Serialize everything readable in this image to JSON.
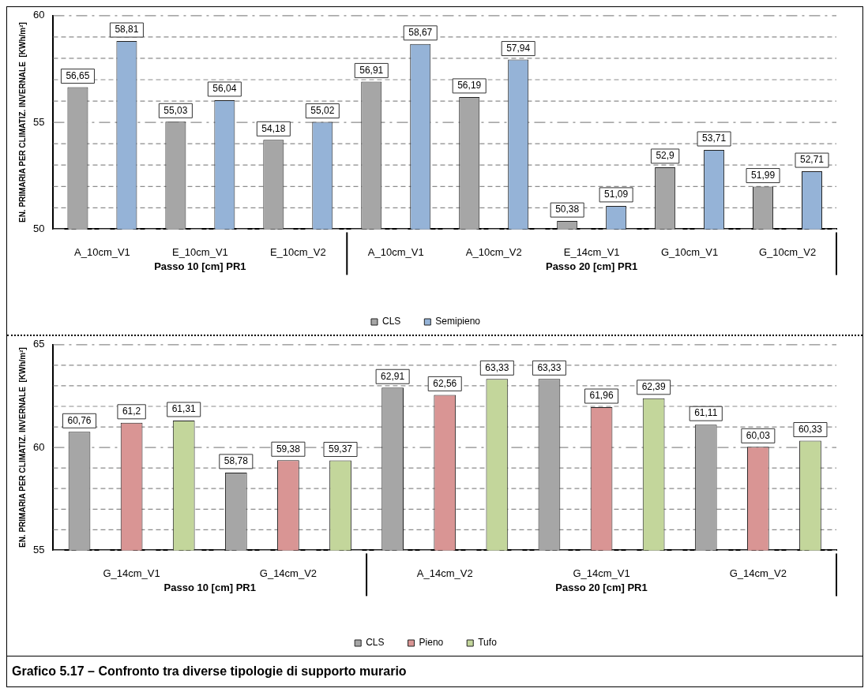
{
  "chart_data": [
    {
      "type": "bar",
      "ylabel": "EN. PRIMARIA PER CLIMATIZ. INVERNALE  [KWh/m²]",
      "categories": [
        "A_10cm_V1",
        "E_10cm_V1",
        "E_10cm_V2",
        "A_10cm_V1",
        "A_10cm_V2",
        "E_14cm_V1",
        "G_10cm_V1",
        "G_10cm_V2"
      ],
      "series": [
        {
          "name": "CLS",
          "color": "#a6a6a6",
          "values": [
            56.65,
            55.03,
            54.18,
            56.91,
            56.19,
            50.38,
            52.9,
            51.99
          ],
          "value_labels": [
            "56,65",
            "55,03",
            "54,18",
            "56,91",
            "56,19",
            "50,38",
            "52,9",
            "51,99"
          ]
        },
        {
          "name": "Semipieno",
          "color": "#95b3d7",
          "values": [
            58.81,
            56.04,
            55.02,
            58.67,
            57.94,
            51.09,
            53.71,
            52.71
          ],
          "value_labels": [
            "58,81",
            "56,04",
            "55,02",
            "58,67",
            "57,94",
            "51,09",
            "53,71",
            "52,71"
          ]
        }
      ],
      "ylim": [
        50,
        60
      ],
      "yticks": [
        50,
        {
          "value": 51,
          "label": null
        },
        {
          "value": 52,
          "label": null
        },
        {
          "value": 53,
          "label": null
        },
        {
          "value": 54,
          "label": null
        },
        55,
        {
          "value": 56,
          "label": null
        },
        {
          "value": 57,
          "label": null
        },
        {
          "value": 58,
          "label": null
        },
        {
          "value": 59,
          "label": null
        },
        60
      ],
      "grid": "y",
      "legend": "bottom",
      "annotations": [
        "Passo 10 [cm] PR1",
        "Passo 20 [cm] PR1"
      ]
    },
    {
      "type": "bar",
      "title": "Grafico 5.17 – Confronto tra diverse tipologie di supporto murario",
      "ylabel": "EN. PRIMARIA PER CLIMATIZ. INVERNALE  [KWh/m²]",
      "categories": [
        "G_14cm_V1",
        "G_14cm_V2",
        "A_14cm_V2",
        "G_14cm_V1",
        "G_14cm_V2"
      ],
      "series": [
        {
          "name": "CLS",
          "color": "#a6a6a6",
          "values": [
            60.76,
            58.78,
            62.91,
            63.33,
            61.11
          ],
          "value_labels": [
            "60,76",
            "58,78",
            "62,91",
            "63,33",
            "61,11"
          ]
        },
        {
          "name": "Pieno",
          "color": "#d99594",
          "values": [
            61.2,
            59.38,
            62.56,
            61.96,
            60.03
          ],
          "value_labels": [
            "61,2",
            "59,38",
            "62,56",
            "61,96",
            "60,03"
          ]
        },
        {
          "name": "Tufo",
          "color": "#c3d69b",
          "values": [
            61.31,
            59.37,
            63.33,
            62.39,
            60.33
          ],
          "value_labels": [
            "61,31",
            "59,37",
            "63,33",
            "62,39",
            "60,33"
          ]
        }
      ],
      "ylim": [
        55,
        65
      ],
      "yticks": [
        55,
        {
          "value": 56,
          "label": null
        },
        {
          "value": 57,
          "label": null
        },
        {
          "value": 58,
          "label": null
        },
        {
          "value": 59,
          "label": null
        },
        60,
        {
          "value": 61,
          "label": null
        },
        {
          "value": 62,
          "label": null
        },
        {
          "value": 63,
          "label": null
        },
        {
          "value": 64,
          "label": null
        },
        65
      ],
      "grid": "y",
      "legend": "bottom",
      "annotations": [
        "Passo 10 [cm] PR1",
        "Passo 20 [cm] PR1"
      ]
    }
  ]
}
